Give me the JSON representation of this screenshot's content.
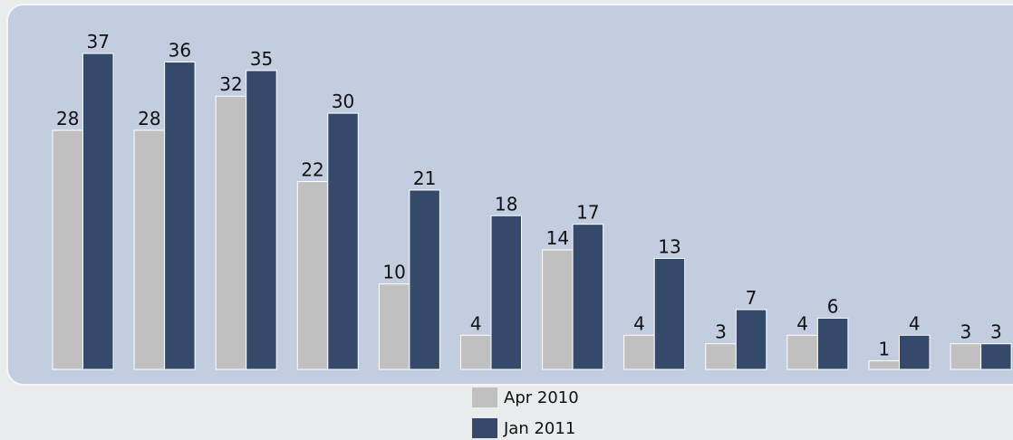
{
  "chart_data": {
    "type": "bar",
    "categories": [
      null,
      null,
      null,
      null,
      null,
      null,
      null,
      null,
      null,
      null,
      null,
      null
    ],
    "series": [
      {
        "name": "Apr 2010",
        "color": "#c0c0c0",
        "values": [
          28,
          28,
          32,
          22,
          10,
          4,
          14,
          4,
          3,
          4,
          1,
          3
        ]
      },
      {
        "name": "Jan 2011",
        "color": "#354a6b",
        "values": [
          37,
          36,
          35,
          30,
          21,
          18,
          17,
          13,
          7,
          6,
          4,
          3
        ]
      }
    ],
    "legend": "bottom"
  }
}
